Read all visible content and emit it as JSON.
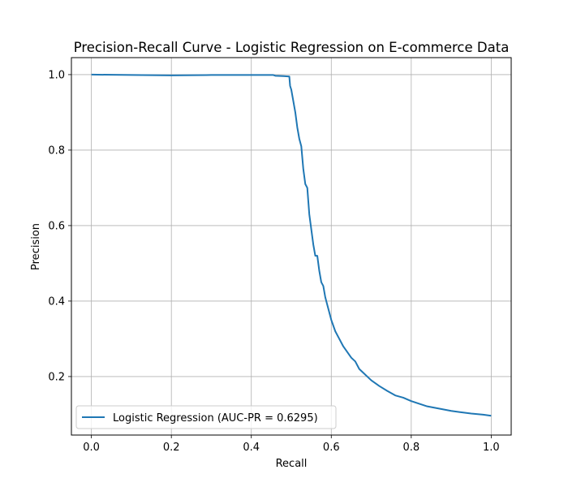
{
  "chart_data": {
    "type": "line",
    "title": "Precision-Recall Curve - Logistic Regression on E-commerce Data",
    "xlabel": "Recall",
    "ylabel": "Precision",
    "xlim": [
      -0.05,
      1.05
    ],
    "ylim": [
      0.045,
      1.045
    ],
    "xticks": [
      0.0,
      0.2,
      0.4,
      0.6,
      0.8,
      1.0
    ],
    "xtick_labels": [
      "0.0",
      "0.2",
      "0.4",
      "0.6",
      "0.8",
      "1.0"
    ],
    "yticks": [
      0.2,
      0.4,
      0.6,
      0.8,
      1.0
    ],
    "ytick_labels": [
      "0.2",
      "0.4",
      "0.6",
      "0.8",
      "1.0"
    ],
    "grid": true,
    "legend_position": "lower-left",
    "series": [
      {
        "name": "Logistic Regression (AUC-PR = 0.6295)",
        "color": "#1f77b4",
        "x": [
          0.0,
          0.2,
          0.3,
          0.455,
          0.46,
          0.48,
          0.495,
          0.497,
          0.5,
          0.505,
          0.51,
          0.515,
          0.52,
          0.525,
          0.53,
          0.535,
          0.54,
          0.545,
          0.55,
          0.555,
          0.56,
          0.565,
          0.57,
          0.575,
          0.58,
          0.585,
          0.59,
          0.6,
          0.61,
          0.62,
          0.63,
          0.64,
          0.65,
          0.66,
          0.67,
          0.68,
          0.69,
          0.7,
          0.72,
          0.74,
          0.76,
          0.78,
          0.8,
          0.82,
          0.84,
          0.86,
          0.88,
          0.9,
          0.92,
          0.95,
          0.98,
          1.0
        ],
        "y": [
          1.0,
          0.998,
          0.999,
          0.999,
          0.997,
          0.996,
          0.995,
          0.97,
          0.96,
          0.93,
          0.9,
          0.86,
          0.83,
          0.81,
          0.75,
          0.71,
          0.7,
          0.63,
          0.59,
          0.55,
          0.52,
          0.52,
          0.48,
          0.45,
          0.44,
          0.41,
          0.39,
          0.35,
          0.32,
          0.3,
          0.28,
          0.265,
          0.25,
          0.24,
          0.22,
          0.21,
          0.2,
          0.19,
          0.175,
          0.162,
          0.15,
          0.144,
          0.135,
          0.128,
          0.121,
          0.117,
          0.113,
          0.109,
          0.106,
          0.102,
          0.099,
          0.096
        ]
      }
    ]
  }
}
